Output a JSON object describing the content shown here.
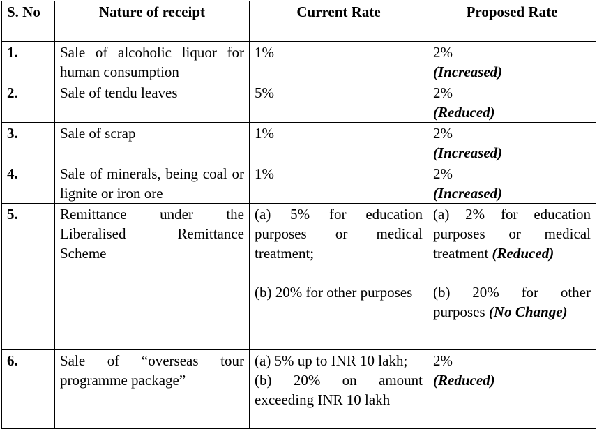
{
  "headers": {
    "sno": "S. No",
    "nature": "Nature of receipt",
    "current": "Current Rate",
    "proposed": "Proposed Rate"
  },
  "rows": [
    {
      "sno": "1.",
      "nature": "Sale of alcoholic liquor for human consumption",
      "current": "1%",
      "proposed": "2%",
      "tag": "(Increased)"
    },
    {
      "sno": "2.",
      "nature": "Sale of tendu leaves",
      "current": "5%",
      "proposed": "2%",
      "tag": "(Reduced)"
    },
    {
      "sno": "3.",
      "nature": "Sale of scrap",
      "current": "1%",
      "proposed": "2%",
      "tag": "(Increased)"
    },
    {
      "sno": "4.",
      "nature": "Sale of minerals, being coal or lignite or iron ore",
      "current": "1%",
      "proposed": "2%",
      "tag": "(Increased)"
    },
    {
      "sno": "5.",
      "nature": "Remittance under the Liberalised Remittance Scheme",
      "current_a": "(a) 5% for education purposes or medical treatment;",
      "current_b": "(b) 20% for other purposes",
      "proposed_a": "(a) 2% for education purposes or medical treatment",
      "proposed_a_tag": "(Reduced)",
      "proposed_b": "(b) 20% for other purposes",
      "proposed_b_tag": "(No Change)"
    },
    {
      "sno": "6.",
      "nature": "Sale of “overseas tour programme package”",
      "current_a": "(a) 5% up to INR 10 lakh;",
      "current_b": "(b) 20% on amount exceeding INR 10 lakh",
      "proposed": "2%",
      "tag": "(Reduced)"
    }
  ]
}
